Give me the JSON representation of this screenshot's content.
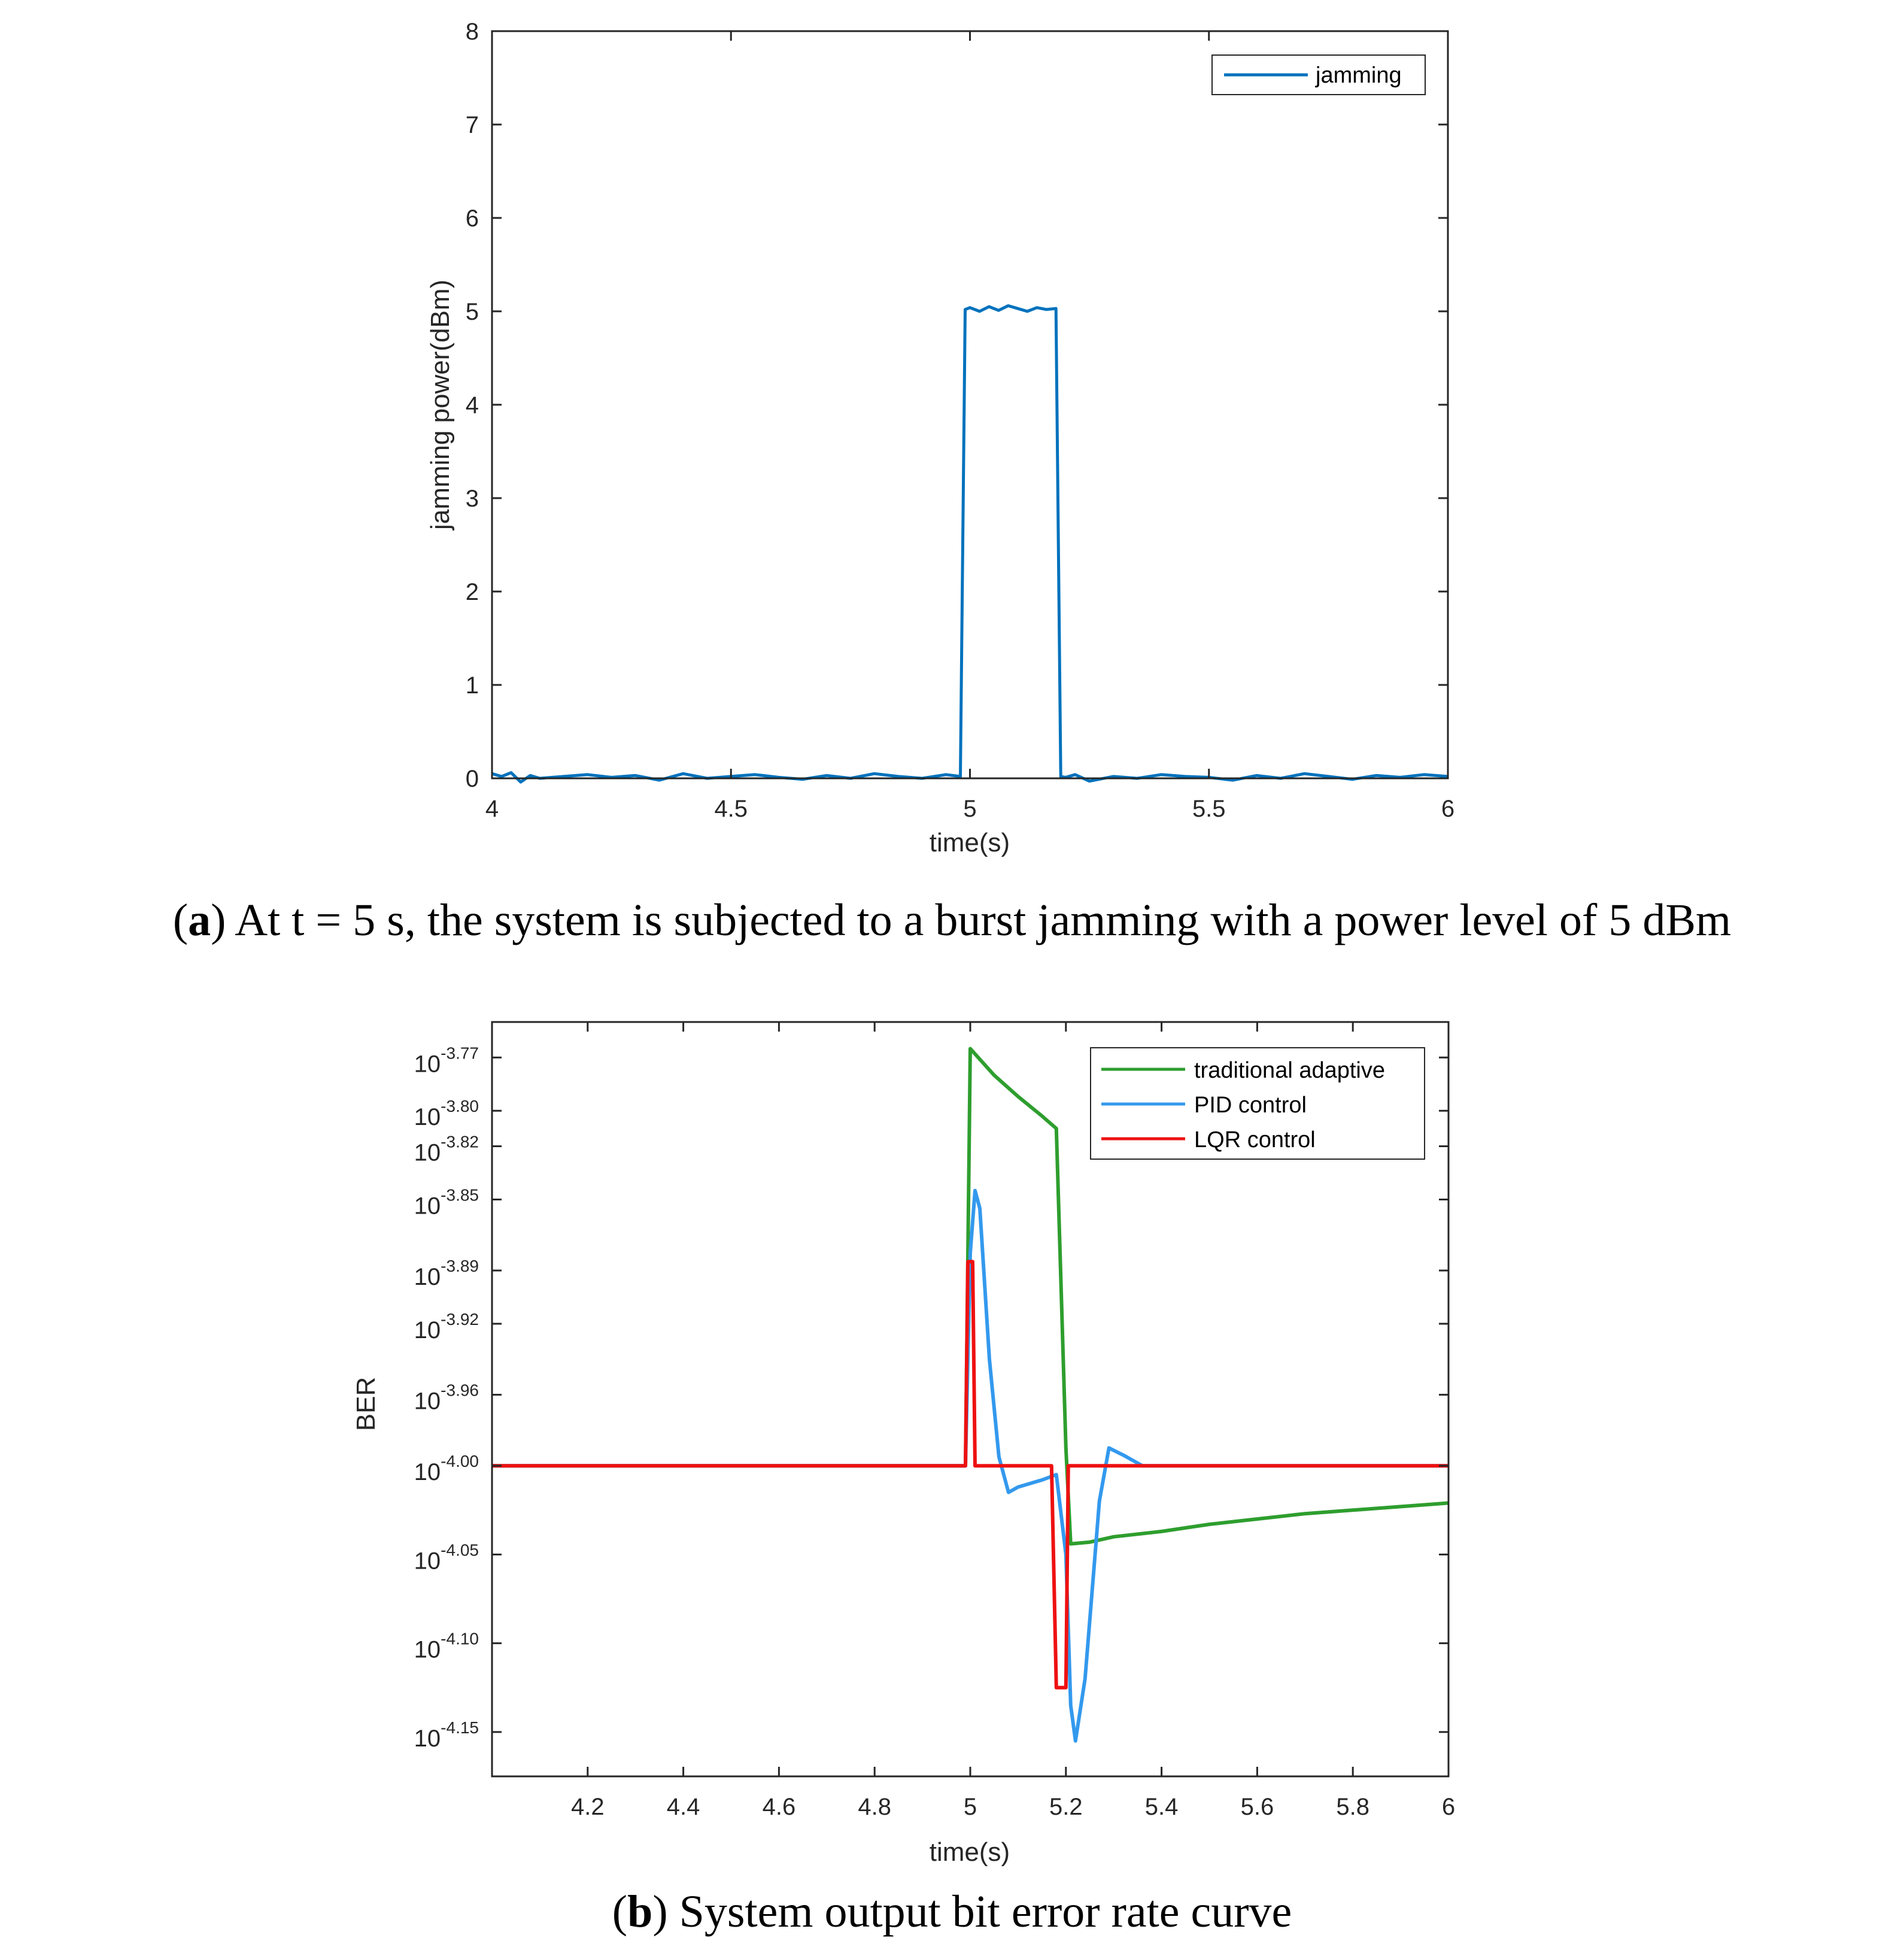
{
  "chart_data": [
    {
      "id": "a",
      "type": "line",
      "title": "",
      "xlabel": "time(s)",
      "ylabel": "jamming power(dBm)",
      "xlim": [
        4,
        6
      ],
      "ylim": [
        0,
        8
      ],
      "xticks": [
        "4",
        "4.5",
        "5",
        "5.5",
        "6"
      ],
      "yticks": [
        "0",
        "1",
        "2",
        "3",
        "4",
        "5",
        "6",
        "7",
        "8"
      ],
      "grid": false,
      "legend_position": "top-right",
      "series": [
        {
          "name": "jamming",
          "color": "#0072BD",
          "x": [
            4.0,
            4.02,
            4.04,
            4.06,
            4.08,
            4.1,
            4.15,
            4.2,
            4.25,
            4.3,
            4.35,
            4.4,
            4.45,
            4.5,
            4.55,
            4.6,
            4.65,
            4.7,
            4.75,
            4.8,
            4.85,
            4.9,
            4.95,
            4.98,
            4.99,
            5.0,
            5.02,
            5.04,
            5.06,
            5.08,
            5.1,
            5.12,
            5.14,
            5.16,
            5.18,
            5.19,
            5.2,
            5.22,
            5.25,
            5.3,
            5.35,
            5.4,
            5.45,
            5.5,
            5.55,
            5.6,
            5.65,
            5.7,
            5.75,
            5.8,
            5.85,
            5.9,
            5.95,
            6.0
          ],
          "values": [
            0.05,
            0.02,
            0.06,
            -0.04,
            0.03,
            0.0,
            0.02,
            0.04,
            0.01,
            0.03,
            -0.02,
            0.05,
            0.0,
            0.02,
            0.04,
            0.01,
            -0.01,
            0.03,
            0.0,
            0.05,
            0.02,
            0.0,
            0.04,
            0.02,
            5.02,
            5.04,
            5.0,
            5.05,
            5.01,
            5.06,
            5.03,
            5.0,
            5.04,
            5.02,
            5.03,
            0.02,
            0.01,
            0.04,
            -0.03,
            0.02,
            0.0,
            0.04,
            0.02,
            0.01,
            -0.02,
            0.03,
            0.0,
            0.05,
            0.02,
            -0.01,
            0.03,
            0.01,
            0.04,
            0.02
          ]
        }
      ]
    },
    {
      "id": "b",
      "type": "line",
      "title": "",
      "xlabel": "time(s)",
      "ylabel": "BER",
      "xlim": [
        4,
        6
      ],
      "ylim": [
        -4.175,
        -3.75
      ],
      "y_scale": "log",
      "xticks": [
        "4.2",
        "4.4",
        "4.6",
        "4.8",
        "5",
        "5.2",
        "5.4",
        "5.6",
        "5.8",
        "6"
      ],
      "yticks": [
        {
          "value": -4.15,
          "base": "10",
          "exp": "-4.15"
        },
        {
          "value": -4.1,
          "base": "10",
          "exp": "-4.10"
        },
        {
          "value": -4.05,
          "base": "10",
          "exp": "-4.05"
        },
        {
          "value": -4.0,
          "base": "10",
          "exp": "-4.00"
        },
        {
          "value": -3.96,
          "base": "10",
          "exp": "-3.96"
        },
        {
          "value": -3.92,
          "base": "10",
          "exp": "-3.92"
        },
        {
          "value": -3.89,
          "base": "10",
          "exp": "-3.89"
        },
        {
          "value": -3.85,
          "base": "10",
          "exp": "-3.85"
        },
        {
          "value": -3.82,
          "base": "10",
          "exp": "-3.82"
        },
        {
          "value": -3.8,
          "base": "10",
          "exp": "-3.80"
        },
        {
          "value": -3.77,
          "base": "10",
          "exp": "-3.77"
        }
      ],
      "grid": false,
      "legend_position": "top-right",
      "series": [
        {
          "name": "traditional adaptive",
          "color": "#2E9E2E",
          "x": [
            4.0,
            4.2,
            4.4,
            4.6,
            4.8,
            4.99,
            5.0,
            5.05,
            5.1,
            5.15,
            5.18,
            5.2,
            5.21,
            5.25,
            5.3,
            5.4,
            5.5,
            5.6,
            5.7,
            5.8,
            5.9,
            6.0
          ],
          "values": [
            -4.0,
            -4.0,
            -4.0,
            -4.0,
            -4.0,
            -4.0,
            -3.765,
            -3.78,
            -3.792,
            -3.803,
            -3.81,
            -3.99,
            -4.044,
            -4.043,
            -4.04,
            -4.037,
            -4.033,
            -4.03,
            -4.027,
            -4.025,
            -4.023,
            -4.021
          ]
        },
        {
          "name": "PID control",
          "color": "#3399EE",
          "x": [
            4.0,
            4.2,
            4.4,
            4.6,
            4.8,
            4.99,
            5.0,
            5.01,
            5.02,
            5.04,
            5.06,
            5.08,
            5.1,
            5.15,
            5.18,
            5.2,
            5.21,
            5.22,
            5.24,
            5.27,
            5.29,
            5.32,
            5.36,
            5.4,
            5.6,
            5.8,
            6.0
          ],
          "values": [
            -4.0,
            -4.0,
            -4.0,
            -4.0,
            -4.0,
            -4.0,
            -3.88,
            -3.845,
            -3.855,
            -3.94,
            -3.995,
            -4.015,
            -4.012,
            -4.008,
            -4.005,
            -4.05,
            -4.135,
            -4.155,
            -4.12,
            -4.02,
            -3.99,
            -3.994,
            -4.0,
            -4.0,
            -4.0,
            -4.0,
            -4.0
          ]
        },
        {
          "name": "LQR control",
          "color": "#EE1111",
          "x": [
            4.0,
            4.2,
            4.4,
            4.6,
            4.8,
            4.99,
            4.995,
            5.0,
            5.005,
            5.01,
            5.1,
            5.17,
            5.18,
            5.185,
            5.19,
            5.2,
            5.205,
            5.21,
            5.4,
            5.6,
            5.8,
            6.0
          ],
          "values": [
            -4.0,
            -4.0,
            -4.0,
            -4.0,
            -4.0,
            -4.0,
            -3.885,
            -3.885,
            -3.885,
            -4.0,
            -4.0,
            -4.0,
            -4.125,
            -4.125,
            -4.125,
            -4.125,
            -4.0,
            -4.0,
            -4.0,
            -4.0,
            -4.0,
            -4.0
          ]
        }
      ]
    }
  ],
  "captions": {
    "a_letter": "a",
    "a_text": "At t = 5 s, the system is subjected to a burst jamming with a power level of 5 dBm",
    "b_letter": "b",
    "b_text": "System output bit error rate curve"
  }
}
